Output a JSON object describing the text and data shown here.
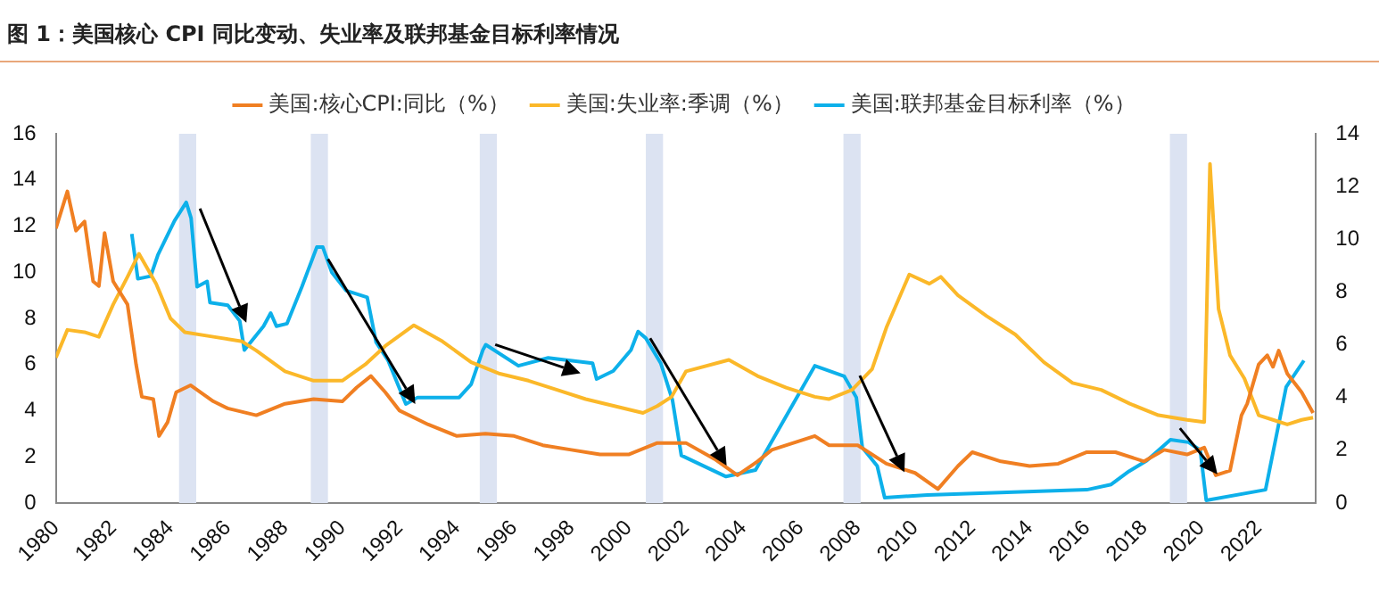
{
  "chart_data": {
    "type": "line",
    "title": "图 1：美国核心 CPI 同比变动、失业率及联邦基金目标利率情况",
    "xlim": [
      1980,
      2024
    ],
    "xticks": [
      1980,
      1982,
      1984,
      1986,
      1988,
      1990,
      1992,
      1994,
      1996,
      1998,
      2000,
      2002,
      2004,
      2006,
      2008,
      2010,
      2012,
      2014,
      2016,
      2018,
      2020,
      2022
    ],
    "ylim": [
      0,
      16
    ],
    "yticks": [
      0,
      2,
      4,
      6,
      8,
      10,
      12,
      14,
      16
    ],
    "y2lim": [
      0,
      14
    ],
    "y2ticks": [
      0,
      2,
      4,
      6,
      8,
      10,
      12,
      14
    ],
    "legend": "top",
    "grid": false,
    "bands": [
      {
        "axis": "x",
        "from": 1984.3,
        "to": 1984.9,
        "color": "#dce3f2"
      },
      {
        "axis": "x",
        "from": 1988.9,
        "to": 1989.5,
        "color": "#dce3f2"
      },
      {
        "axis": "x",
        "from": 1994.8,
        "to": 1995.4,
        "color": "#dce3f2"
      },
      {
        "axis": "x",
        "from": 2000.6,
        "to": 2001.2,
        "color": "#dce3f2"
      },
      {
        "axis": "x",
        "from": 2007.5,
        "to": 2008.1,
        "color": "#dce3f2"
      },
      {
        "axis": "x",
        "from": 2018.9,
        "to": 2019.5,
        "color": "#dce3f2"
      }
    ],
    "series": [
      {
        "name": "美国:核心CPI:同比（%）",
        "color": "#f07f22",
        "x": [
          1980.0,
          1980.4,
          1980.7,
          1981.0,
          1981.3,
          1981.5,
          1981.7,
          1982.0,
          1982.5,
          1982.8,
          1983.0,
          1983.4,
          1983.6,
          1983.9,
          1984.2,
          1984.7,
          1985.5,
          1986.0,
          1987.0,
          1988.0,
          1989.0,
          1990.0,
          1990.5,
          1991.0,
          1991.5,
          1992.0,
          1993.0,
          1994.0,
          1995.0,
          1996.0,
          1997.0,
          1998.0,
          1999.0,
          2000.0,
          2001.0,
          2002.0,
          2003.0,
          2003.8,
          2004.5,
          2005.0,
          2006.5,
          2007.0,
          2008.0,
          2009.0,
          2010.0,
          2010.8,
          2011.5,
          2012.0,
          2013.0,
          2014.0,
          2015.0,
          2016.0,
          2017.0,
          2018.0,
          2018.7,
          2019.5,
          2020.1,
          2020.5,
          2021.0,
          2021.4,
          2021.6,
          2022.0,
          2022.3,
          2022.5,
          2022.7,
          2023.0,
          2023.5,
          2023.9
        ],
        "values": [
          11.9,
          13.5,
          11.8,
          12.2,
          9.6,
          9.4,
          11.7,
          9.6,
          8.6,
          6.0,
          4.6,
          4.5,
          2.9,
          3.5,
          4.8,
          5.1,
          4.4,
          4.1,
          3.8,
          4.3,
          4.5,
          4.4,
          5.0,
          5.5,
          4.8,
          4.0,
          3.4,
          2.9,
          3.0,
          2.9,
          2.5,
          2.3,
          2.1,
          2.1,
          2.6,
          2.6,
          1.9,
          1.2,
          1.8,
          2.3,
          2.9,
          2.5,
          2.5,
          1.7,
          1.3,
          0.6,
          1.6,
          2.2,
          1.8,
          1.6,
          1.7,
          2.2,
          2.2,
          1.8,
          2.3,
          2.1,
          2.4,
          1.2,
          1.4,
          3.8,
          4.3,
          6.0,
          6.4,
          5.9,
          6.6,
          5.6,
          4.8,
          3.9
        ]
      },
      {
        "name": "美国:失业率:季调（%）",
        "color": "#fbb829",
        "x": [
          1980.0,
          1980.4,
          1981.0,
          1981.5,
          1982.0,
          1982.5,
          1982.9,
          1983.5,
          1984.0,
          1984.5,
          1985.5,
          1986.5,
          1987.0,
          1988.0,
          1989.0,
          1990.0,
          1990.8,
          1991.5,
          1992.5,
          1993.5,
          1994.5,
          1995.5,
          1996.5,
          1997.5,
          1998.5,
          1999.5,
          2000.5,
          2001.0,
          2001.5,
          2002.0,
          2003.5,
          2004.5,
          2005.5,
          2006.5,
          2007.0,
          2007.8,
          2008.5,
          2009.0,
          2009.8,
          2010.5,
          2010.9,
          2011.5,
          2012.5,
          2013.5,
          2014.5,
          2015.5,
          2016.5,
          2017.5,
          2018.5,
          2019.5,
          2020.1,
          2020.3,
          2020.6,
          2021.0,
          2021.5,
          2022.0,
          2022.5,
          2023.0,
          2023.5,
          2023.9
        ],
        "values": [
          6.3,
          7.5,
          7.4,
          7.2,
          8.6,
          9.8,
          10.8,
          9.5,
          8.0,
          7.4,
          7.2,
          7.0,
          6.6,
          5.7,
          5.3,
          5.3,
          6.0,
          6.8,
          7.7,
          7.0,
          6.1,
          5.6,
          5.3,
          4.9,
          4.5,
          4.2,
          3.9,
          4.2,
          4.6,
          5.7,
          6.2,
          5.5,
          5.0,
          4.6,
          4.5,
          4.9,
          5.8,
          7.6,
          9.9,
          9.5,
          9.8,
          9.0,
          8.1,
          7.3,
          6.1,
          5.2,
          4.9,
          4.3,
          3.8,
          3.6,
          3.5,
          14.7,
          8.4,
          6.4,
          5.4,
          3.8,
          3.6,
          3.4,
          3.6,
          3.7
        ]
      },
      {
        "name": "美国:联邦基金目标利率（%）",
        "color": "#0db0ea",
        "axis": "y2",
        "x": [
          1982.65,
          1982.86,
          1983.31,
          1983.56,
          1984.14,
          1984.55,
          1984.72,
          1984.93,
          1985.28,
          1985.38,
          1986.0,
          1986.42,
          1986.58,
          1987.25,
          1987.5,
          1987.7,
          1988.07,
          1988.59,
          1989.11,
          1989.32,
          1989.63,
          1990.14,
          1990.87,
          1991.18,
          1991.6,
          1992.22,
          1992.63,
          1994.08,
          1994.5,
          1994.91,
          1995.01,
          1996.15,
          1997.19,
          1998.74,
          1998.88,
          1999.46,
          2000.08,
          2000.33,
          2000.6,
          2001.12,
          2001.53,
          2001.84,
          2003.4,
          2004.43,
          2006.5,
          2007.53,
          2007.95,
          2008.16,
          2008.68,
          2008.94,
          2010.43,
          2016.0,
          2016.85,
          2017.47,
          2018.09,
          2018.92,
          2019.55,
          2019.96,
          2020.17,
          2022.24,
          2022.96,
          2023.58
        ],
        "values": [
          10.2,
          8.5,
          8.6,
          9.4,
          10.7,
          11.4,
          10.8,
          8.2,
          8.4,
          7.6,
          7.5,
          6.9,
          5.8,
          6.7,
          7.2,
          6.7,
          6.8,
          8.2,
          9.7,
          9.7,
          8.75,
          8.05,
          7.8,
          6.1,
          5.4,
          3.75,
          4.0,
          4.0,
          4.5,
          5.8,
          6.0,
          5.2,
          5.5,
          5.3,
          4.7,
          5.0,
          5.8,
          6.5,
          6.25,
          5.3,
          3.9,
          1.8,
          1.0,
          1.25,
          5.2,
          4.8,
          4.0,
          2.1,
          1.4,
          0.2,
          0.3,
          0.5,
          0.7,
          1.2,
          1.6,
          2.4,
          2.3,
          2.0,
          0.1,
          0.5,
          4.4,
          5.4
        ]
      }
    ]
  }
}
